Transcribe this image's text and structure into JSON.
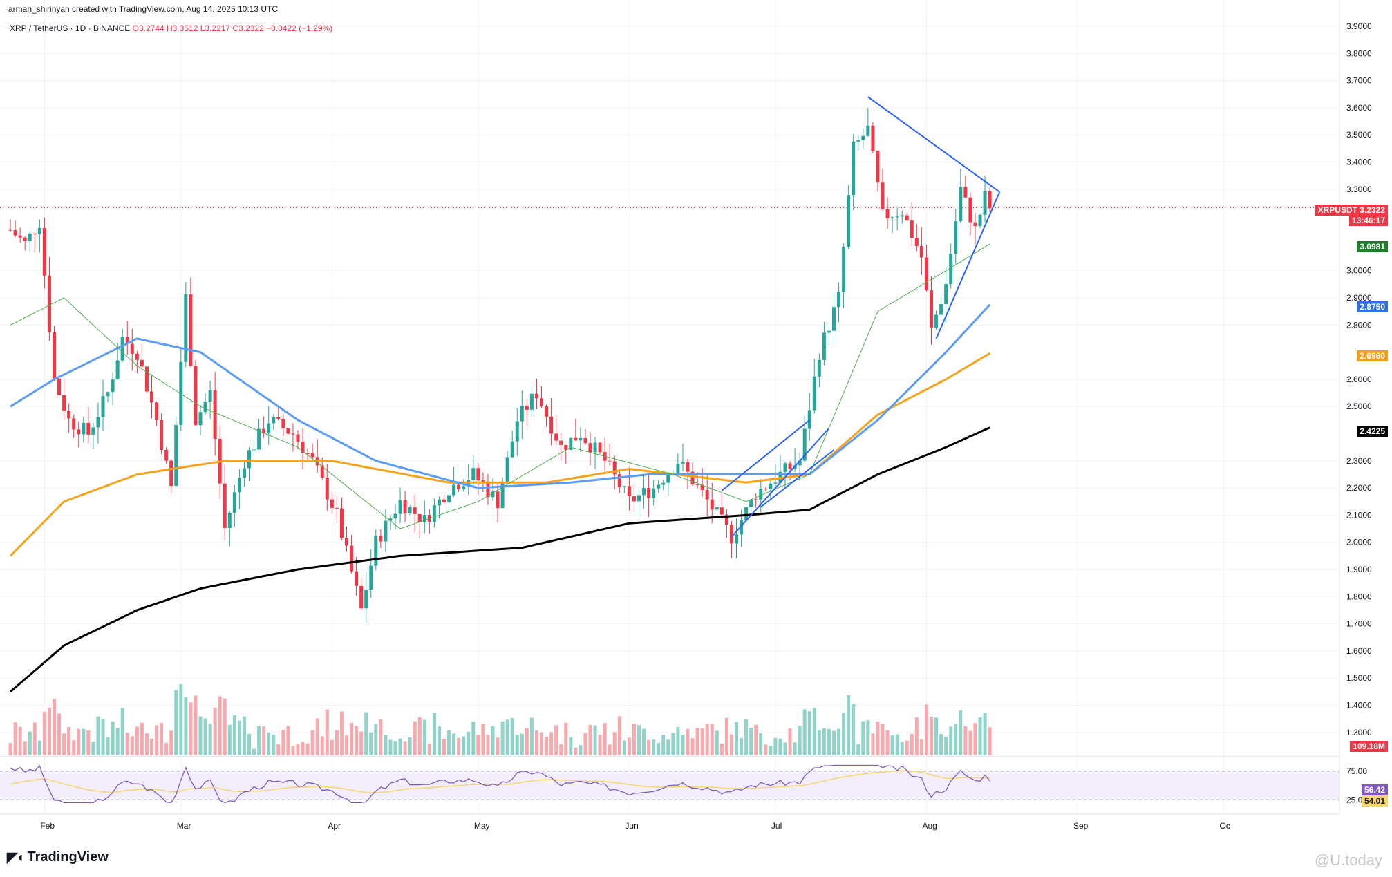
{
  "header": {
    "credit": "arman_shirinyan created with TradingView.com, Aug 14, 2025 10:13 UTC",
    "symbol": "XRP / TetherUS · 1D · BINANCE",
    "ohlc": "O3.2744 H3.3512 L3.2217 C3.2322 −0.0422 (−1.29%)"
  },
  "brand": {
    "logo_text": "TradingView",
    "watermark": "@U.today"
  },
  "tags": {
    "symbol_tag": "XRPUSDT",
    "last_price": "3.2322",
    "countdown": "13:46:17",
    "ma_fast": "3.0981",
    "ma_blue": "2.8750",
    "ma_orange": "2.6960",
    "ma_black": "2.4225",
    "volume": "109.18M",
    "rsi": "56.42",
    "rsi_ma": "54.01"
  },
  "colors": {
    "up": "#26a69a",
    "down": "#f23645",
    "ma_green": "#4caf50",
    "ma_blue": "#5b9cf6",
    "ma_orange": "#f7a21b",
    "ma_black": "#000000",
    "rsi": "#7e57c2",
    "rsi_ma": "#f5d76e",
    "trendline": "#2962ff"
  },
  "chart_data": {
    "type": "candlestick",
    "title": "XRP / TetherUS · 1D · BINANCE",
    "x_ticks": [
      "Feb",
      "Mar",
      "Apr",
      "May",
      "Jun",
      "Jul",
      "Aug",
      "Sep",
      "Oc"
    ],
    "y_ticks": [
      "3.9000",
      "3.8000",
      "3.7000",
      "3.6000",
      "3.5000",
      "3.4000",
      "3.3000",
      "3.0000",
      "2.9000",
      "2.8000",
      "2.6000",
      "2.5000",
      "2.3000",
      "2.2000",
      "2.1000",
      "2.0000",
      "1.9000",
      "1.8000",
      "1.7000",
      "1.6000",
      "1.5000",
      "1.4000",
      "1.3000"
    ],
    "ylim": [
      1.3,
      3.9
    ],
    "rsi_ticks": [
      "75.00",
      "25.00"
    ],
    "price_anchors": [
      {
        "d": "2025-01-25",
        "v": 3.15
      },
      {
        "d": "2025-01-28",
        "v": 3.1
      },
      {
        "d": "2025-01-31",
        "v": 3.18
      },
      {
        "d": "2025-02-03",
        "v": 2.6
      },
      {
        "d": "2025-02-06",
        "v": 2.45
      },
      {
        "d": "2025-02-10",
        "v": 2.4
      },
      {
        "d": "2025-02-14",
        "v": 2.55
      },
      {
        "d": "2025-02-17",
        "v": 2.75
      },
      {
        "d": "2025-02-20",
        "v": 2.7
      },
      {
        "d": "2025-02-24",
        "v": 2.45
      },
      {
        "d": "2025-02-27",
        "v": 2.2
      },
      {
        "d": "2025-03-02",
        "v": 2.9
      },
      {
        "d": "2025-03-04",
        "v": 2.45
      },
      {
        "d": "2025-03-07",
        "v": 2.55
      },
      {
        "d": "2025-03-10",
        "v": 2.05
      },
      {
        "d": "2025-03-14",
        "v": 2.3
      },
      {
        "d": "2025-03-19",
        "v": 2.45
      },
      {
        "d": "2025-03-24",
        "v": 2.4
      },
      {
        "d": "2025-03-28",
        "v": 2.3
      },
      {
        "d": "2025-04-02",
        "v": 2.1
      },
      {
        "d": "2025-04-07",
        "v": 1.75
      },
      {
        "d": "2025-04-10",
        "v": 2.0
      },
      {
        "d": "2025-04-15",
        "v": 2.15
      },
      {
        "d": "2025-04-20",
        "v": 2.08
      },
      {
        "d": "2025-04-25",
        "v": 2.2
      },
      {
        "d": "2025-04-30",
        "v": 2.25
      },
      {
        "d": "2025-05-05",
        "v": 2.15
      },
      {
        "d": "2025-05-09",
        "v": 2.45
      },
      {
        "d": "2025-05-13",
        "v": 2.55
      },
      {
        "d": "2025-05-18",
        "v": 2.35
      },
      {
        "d": "2025-05-22",
        "v": 2.4
      },
      {
        "d": "2025-05-27",
        "v": 2.3
      },
      {
        "d": "2025-06-01",
        "v": 2.15
      },
      {
        "d": "2025-06-06",
        "v": 2.2
      },
      {
        "d": "2025-06-11",
        "v": 2.3
      },
      {
        "d": "2025-06-16",
        "v": 2.18
      },
      {
        "d": "2025-06-22",
        "v": 2.02
      },
      {
        "d": "2025-06-27",
        "v": 2.18
      },
      {
        "d": "2025-07-02",
        "v": 2.25
      },
      {
        "d": "2025-07-06",
        "v": 2.3
      },
      {
        "d": "2025-07-10",
        "v": 2.7
      },
      {
        "d": "2025-07-14",
        "v": 2.9
      },
      {
        "d": "2025-07-17",
        "v": 3.45
      },
      {
        "d": "2025-07-20",
        "v": 3.52
      },
      {
        "d": "2025-07-23",
        "v": 3.2
      },
      {
        "d": "2025-07-27",
        "v": 3.22
      },
      {
        "d": "2025-07-31",
        "v": 3.05
      },
      {
        "d": "2025-08-02",
        "v": 2.78
      },
      {
        "d": "2025-08-05",
        "v": 2.95
      },
      {
        "d": "2025-08-08",
        "v": 3.3
      },
      {
        "d": "2025-08-11",
        "v": 3.15
      },
      {
        "d": "2025-08-13",
        "v": 3.27
      },
      {
        "d": "2025-08-14",
        "v": 3.2322
      }
    ],
    "ma_green": [
      {
        "d": "2025-01-25",
        "v": 2.8
      },
      {
        "d": "2025-02-05",
        "v": 2.9
      },
      {
        "d": "2025-02-20",
        "v": 2.65
      },
      {
        "d": "2025-03-05",
        "v": 2.5
      },
      {
        "d": "2025-03-25",
        "v": 2.35
      },
      {
        "d": "2025-04-15",
        "v": 2.05
      },
      {
        "d": "2025-05-01",
        "v": 2.15
      },
      {
        "d": "2025-05-20",
        "v": 2.35
      },
      {
        "d": "2025-06-10",
        "v": 2.25
      },
      {
        "d": "2025-06-25",
        "v": 2.15
      },
      {
        "d": "2025-07-08",
        "v": 2.25
      },
      {
        "d": "2025-07-22",
        "v": 2.85
      },
      {
        "d": "2025-08-05",
        "v": 3.0
      },
      {
        "d": "2025-08-14",
        "v": 3.0981
      }
    ],
    "ma_blue": [
      {
        "d": "2025-01-25",
        "v": 2.5
      },
      {
        "d": "2025-02-03",
        "v": 2.6
      },
      {
        "d": "2025-02-20",
        "v": 2.75
      },
      {
        "d": "2025-03-05",
        "v": 2.7
      },
      {
        "d": "2025-03-25",
        "v": 2.45
      },
      {
        "d": "2025-04-10",
        "v": 2.3
      },
      {
        "d": "2025-05-01",
        "v": 2.2
      },
      {
        "d": "2025-05-20",
        "v": 2.22
      },
      {
        "d": "2025-06-05",
        "v": 2.25
      },
      {
        "d": "2025-06-25",
        "v": 2.25
      },
      {
        "d": "2025-07-08",
        "v": 2.25
      },
      {
        "d": "2025-07-22",
        "v": 2.45
      },
      {
        "d": "2025-08-05",
        "v": 2.7
      },
      {
        "d": "2025-08-14",
        "v": 2.875
      }
    ],
    "ma_orange": [
      {
        "d": "2025-01-25",
        "v": 1.95
      },
      {
        "d": "2025-02-05",
        "v": 2.15
      },
      {
        "d": "2025-02-20",
        "v": 2.25
      },
      {
        "d": "2025-03-10",
        "v": 2.3
      },
      {
        "d": "2025-04-01",
        "v": 2.3
      },
      {
        "d": "2025-04-25",
        "v": 2.22
      },
      {
        "d": "2025-05-15",
        "v": 2.22
      },
      {
        "d": "2025-06-01",
        "v": 2.27
      },
      {
        "d": "2025-06-25",
        "v": 2.22
      },
      {
        "d": "2025-07-08",
        "v": 2.25
      },
      {
        "d": "2025-07-22",
        "v": 2.47
      },
      {
        "d": "2025-08-05",
        "v": 2.6
      },
      {
        "d": "2025-08-14",
        "v": 2.696
      }
    ],
    "ma_black": [
      {
        "d": "2025-01-25",
        "v": 1.45
      },
      {
        "d": "2025-02-05",
        "v": 1.62
      },
      {
        "d": "2025-02-20",
        "v": 1.75
      },
      {
        "d": "2025-03-05",
        "v": 1.83
      },
      {
        "d": "2025-03-25",
        "v": 1.9
      },
      {
        "d": "2025-04-15",
        "v": 1.95
      },
      {
        "d": "2025-05-10",
        "v": 1.98
      },
      {
        "d": "2025-06-01",
        "v": 2.07
      },
      {
        "d": "2025-06-25",
        "v": 2.1
      },
      {
        "d": "2025-07-08",
        "v": 2.12
      },
      {
        "d": "2025-07-22",
        "v": 2.25
      },
      {
        "d": "2025-08-05",
        "v": 2.35
      },
      {
        "d": "2025-08-14",
        "v": 2.4225
      }
    ],
    "trendlines": [
      {
        "from": {
          "d": "2025-07-20",
          "v": 3.64
        },
        "to": {
          "d": "2025-08-16",
          "v": 3.29
        }
      },
      {
        "from": {
          "d": "2025-08-03",
          "v": 2.75
        },
        "to": {
          "d": "2025-08-16",
          "v": 3.29
        }
      },
      {
        "from": {
          "d": "2025-06-22",
          "v": 2.02
        },
        "to": {
          "d": "2025-07-12",
          "v": 2.42
        }
      },
      {
        "from": {
          "d": "2025-06-20",
          "v": 2.19
        },
        "to": {
          "d": "2025-07-08",
          "v": 2.45
        }
      },
      {
        "from": {
          "d": "2025-06-28",
          "v": 2.13
        },
        "to": {
          "d": "2025-07-13",
          "v": 2.34
        }
      }
    ],
    "rsi_last": 56.42,
    "rsi_ma_last": 54.01,
    "volume_last": "109.18M"
  }
}
